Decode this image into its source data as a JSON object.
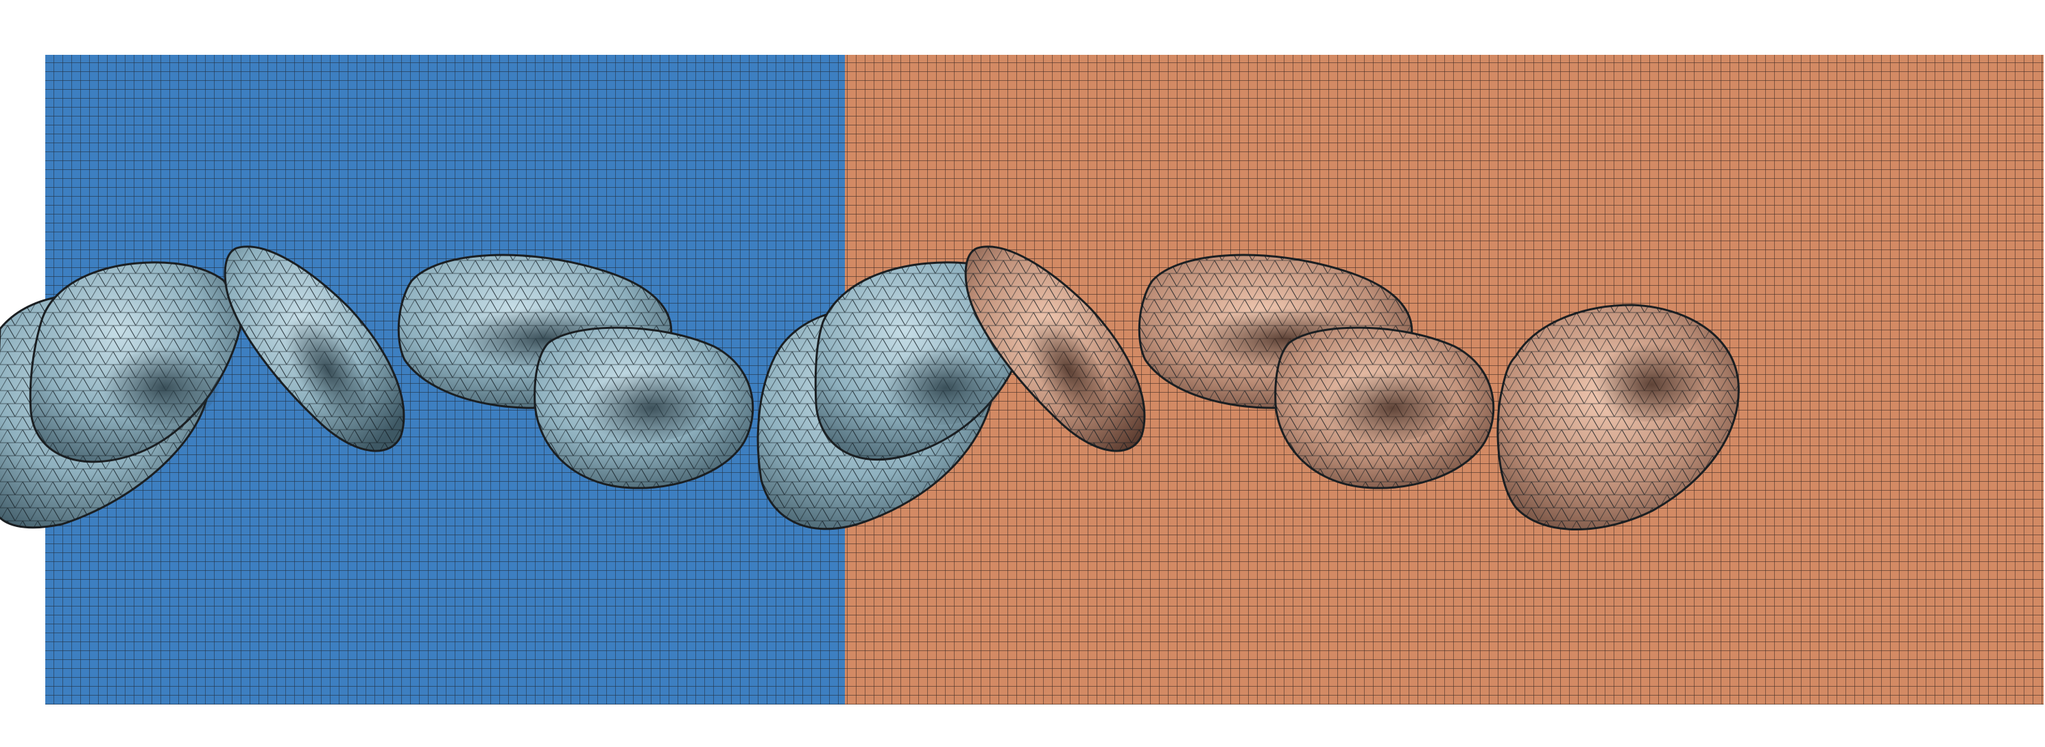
{
  "scene": {
    "background_color": "#ffffff",
    "regions": [
      {
        "name": "region-left-blue",
        "fill": "#3d7fc1",
        "grid_line": "#233447"
      },
      {
        "name": "region-right-orange",
        "fill": "#d38a64",
        "grid_line": "#473127"
      }
    ],
    "mesh_line": "#1b1f22",
    "cells": [
      {
        "name": "cell-1",
        "material": "blue",
        "shape": "folded-cup"
      },
      {
        "name": "cell-2",
        "material": "blue",
        "shape": "tilted-disc"
      },
      {
        "name": "cell-3",
        "material": "blue",
        "shape": "tilted-disc"
      },
      {
        "name": "cell-4",
        "material": "blue",
        "shape": "biconcave"
      },
      {
        "name": "cell-5",
        "material": "blue",
        "shape": "folded-cup"
      },
      {
        "name": "cell-6",
        "material": "tan",
        "shape": "tilted-disc"
      },
      {
        "name": "cell-7",
        "material": "tan",
        "shape": "tilted-disc"
      },
      {
        "name": "cell-8",
        "material": "tan",
        "shape": "biconcave"
      },
      {
        "name": "cell-9",
        "material": "tan",
        "shape": "biconcave"
      }
    ],
    "materials": {
      "blue": {
        "light": "#b8d4df",
        "mid": "#8fb1bf",
        "dark": "#3e5864"
      },
      "tan": {
        "light": "#e6bba3",
        "mid": "#c0917a",
        "dark": "#5a3b2f"
      }
    }
  }
}
